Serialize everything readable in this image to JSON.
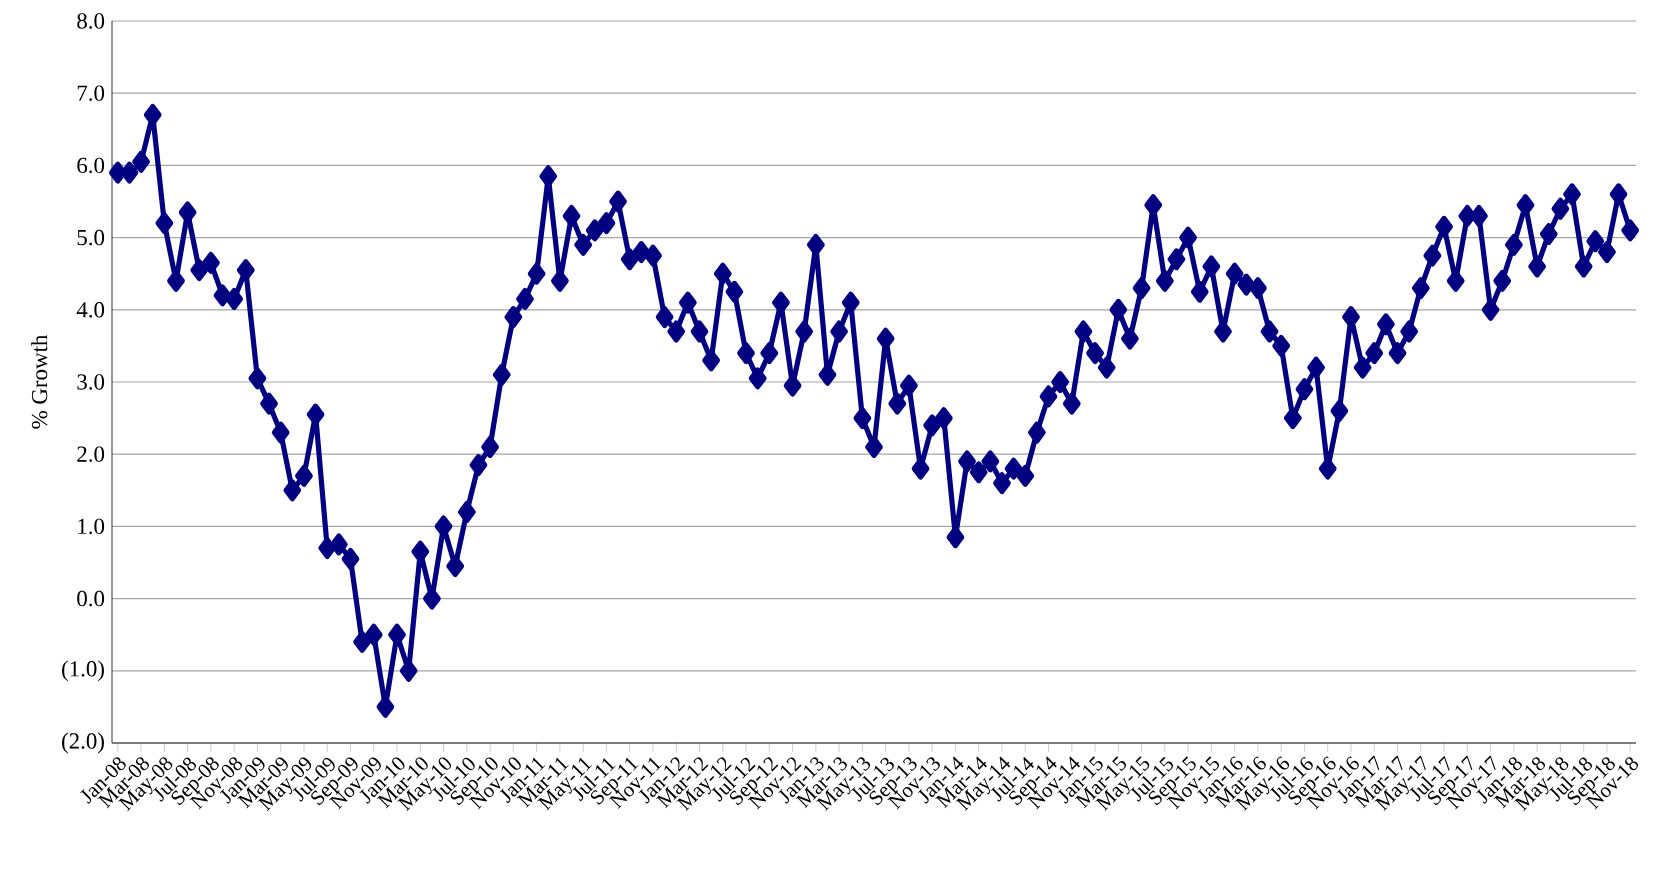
{
  "chart_data": {
    "type": "line",
    "ylabel": "% Growth",
    "categories": [
      "Jan-08",
      null,
      "Mar-08",
      null,
      "May-08",
      null,
      "Jul-08",
      null,
      "Sep-08",
      null,
      "Nov-08",
      null,
      "Jan-09",
      null,
      "Mar-09",
      null,
      "May-09",
      null,
      "Jul-09",
      null,
      "Sep-09",
      null,
      "Nov-09",
      null,
      "Jan-10",
      null,
      "Mar-10",
      null,
      "May-10",
      null,
      "Jul-10",
      null,
      "Sep-10",
      null,
      "Nov-10",
      null,
      "Jan-11",
      null,
      "Mar-11",
      null,
      "May-11",
      null,
      "Jul-11",
      null,
      "Sep-11",
      null,
      "Nov-11",
      null,
      "Jan-12",
      null,
      "Mar-12",
      null,
      "May-12",
      null,
      "Jul-12",
      null,
      "Sep-12",
      null,
      "Nov-12",
      null,
      "Jan-13",
      null,
      "Mar-13",
      null,
      "May-13",
      null,
      "Jul-13",
      null,
      "Sep-13",
      null,
      "Nov-13",
      null,
      "Jan-14",
      null,
      "Mar-14",
      null,
      "May-14",
      null,
      "Jul-14",
      null,
      "Sep-14",
      null,
      "Nov-14",
      null,
      "Jan-15",
      null,
      "Mar-15",
      null,
      "May-15",
      null,
      "Jul-15",
      null,
      "Sep-15",
      null,
      "Nov-15",
      null,
      "Jan-16",
      null,
      "Mar-16",
      null,
      "May-16",
      null,
      "Jul-16",
      null,
      "Sep-16",
      null,
      "Nov-16",
      null,
      "Jan-17",
      null,
      "Mar-17",
      null,
      "May-17",
      null,
      "Jul-17",
      null,
      "Sep-17",
      null,
      "Nov-17",
      null,
      "Jan-18",
      null,
      "Mar-18",
      null,
      "May-18",
      null,
      "Jul-18",
      null,
      "Sep-18",
      null,
      "Nov-18"
    ],
    "series": [
      {
        "color": "#000080",
        "values": [
          5.9,
          5.9,
          6.05,
          6.7,
          5.2,
          4.4,
          5.35,
          4.55,
          4.65,
          4.2,
          4.15,
          4.55,
          3.05,
          2.7,
          2.3,
          1.5,
          1.7,
          2.55,
          0.7,
          0.75,
          0.55,
          -0.6,
          -0.5,
          -1.5,
          -0.5,
          -1.0,
          0.65,
          0.0,
          1.0,
          0.45,
          1.2,
          1.85,
          2.1,
          3.1,
          3.9,
          4.15,
          4.5,
          5.85,
          4.4,
          5.3,
          4.9,
          5.1,
          5.2,
          5.5,
          4.7,
          4.8,
          4.75,
          3.9,
          3.7,
          4.1,
          3.7,
          3.3,
          4.5,
          4.25,
          3.4,
          3.05,
          3.4,
          4.1,
          2.95,
          3.7,
          4.9,
          3.1,
          3.7,
          4.1,
          2.5,
          2.1,
          3.6,
          2.7,
          2.95,
          1.8,
          2.4,
          2.5,
          0.85,
          1.9,
          1.75,
          1.9,
          1.6,
          1.8,
          1.7,
          2.3,
          2.8,
          3.0,
          2.7,
          3.7,
          3.4,
          3.2,
          4.0,
          3.6,
          4.3,
          5.45,
          4.4,
          4.7,
          5.0,
          4.25,
          4.6,
          3.7,
          4.5,
          4.35,
          4.3,
          3.7,
          3.5,
          2.5,
          2.9,
          3.2,
          1.8,
          2.6,
          3.9,
          3.2,
          3.4,
          3.8,
          3.4,
          3.7,
          4.3,
          4.75,
          5.15,
          4.4,
          5.3,
          5.3,
          4.0,
          4.4,
          4.9,
          5.45,
          4.6,
          5.05,
          5.4,
          5.6,
          4.6,
          4.95,
          4.8,
          5.6,
          5.1
        ]
      }
    ],
    "ylim": [
      -2,
      8
    ],
    "yticks": [
      {
        "value": -2,
        "label": "(2.0)"
      },
      {
        "value": -1,
        "label": "(1.0)"
      },
      {
        "value": 0,
        "label": "0.0"
      },
      {
        "value": 1,
        "label": "1.0"
      },
      {
        "value": 2,
        "label": "2.0"
      },
      {
        "value": 3,
        "label": "3.0"
      },
      {
        "value": 4,
        "label": "4.0"
      },
      {
        "value": 5,
        "label": "5.0"
      },
      {
        "value": 6,
        "label": "6.0"
      },
      {
        "value": 7,
        "label": "7.0"
      },
      {
        "value": 8,
        "label": "8.0"
      }
    ],
    "grid": "y",
    "marker": "diamond",
    "line_style": "solid"
  }
}
